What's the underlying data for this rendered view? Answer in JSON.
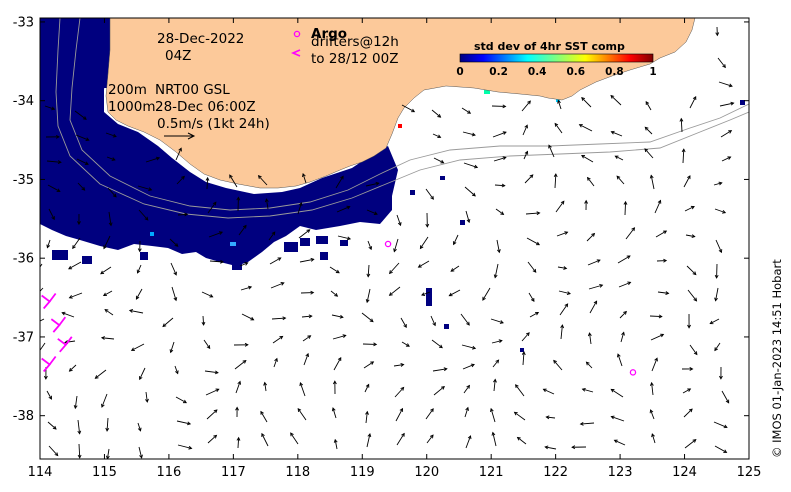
{
  "map": {
    "date_label": "28-Dec-2022",
    "time_label": "04Z",
    "legend_argo": "Argo",
    "legend_drifters": "drifters@12h",
    "legend_drifters_to": "to 28/12 00Z",
    "contour_200": "200m",
    "contour_1000": "1000m",
    "product_label": "NRT00 GSL",
    "product_time": "28-Dec 06:00Z",
    "scale_label": "0.5m/s (1kt 24h)",
    "credit": "© IMOS 01-Jan-2023 14:51 Hobart",
    "lon_ticks": [
      "114",
      "115",
      "116",
      "117",
      "118",
      "119",
      "120",
      "121",
      "122",
      "123",
      "124",
      "125"
    ],
    "lat_ticks": [
      "-33",
      "-34",
      "-35",
      "-36",
      "-37",
      "-38"
    ],
    "lon_range": [
      114,
      125
    ],
    "lat_range": [
      -38.55,
      -32.95
    ]
  },
  "colorbar": {
    "title": "std dev of 4hr SST comp",
    "ticks": [
      "0",
      "0.2",
      "0.4",
      "0.6",
      "0.8",
      "1"
    ]
  },
  "argo_floats": [
    {
      "lon": 119.4,
      "lat": -35.82
    },
    {
      "lon": 123.2,
      "lat": -37.45
    }
  ],
  "drifters": [
    {
      "lon": 114.15,
      "lat": -36.55
    },
    {
      "lon": 114.3,
      "lat": -36.85
    },
    {
      "lon": 114.4,
      "lat": -37.1
    },
    {
      "lon": 114.15,
      "lat": -37.35
    }
  ],
  "colors": {
    "land": "#FCC99A",
    "low_sst_std": "#00007F",
    "contour": "#9a9a9a",
    "argo": "#FF00FF",
    "drifter": "#FF00FF"
  }
}
